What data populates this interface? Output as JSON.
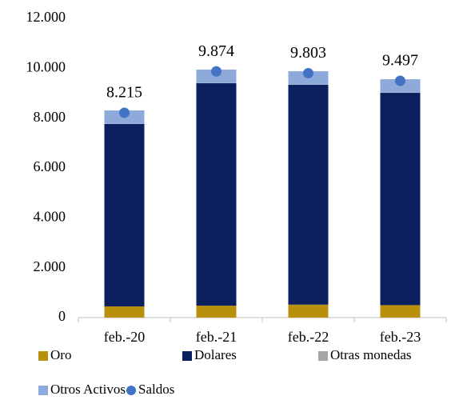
{
  "chart_data": {
    "type": "stacked_bar_dot",
    "categories": [
      "feb.-20",
      "feb.-21",
      "feb.-22",
      "feb.-23"
    ],
    "series": [
      {
        "name": "Oro",
        "color": "#b8900c",
        "values": [
          450,
          480,
          520,
          500
        ]
      },
      {
        "name": "Dolares",
        "color": "#0c1f5e",
        "values": [
          7314,
          8920,
          8816,
          8515
        ]
      },
      {
        "name": "Otras monedas",
        "color": "#a6a6a6",
        "values": [
          10,
          10,
          10,
          10
        ]
      },
      {
        "name": "Otros Activos",
        "color": "#8eaadb",
        "values": [
          535,
          536,
          535,
          535
        ]
      },
      {
        "name": "Saldos",
        "color": "#4472c4",
        "kind": "dot",
        "values": [
          8215,
          9874,
          9803,
          9497
        ],
        "value_labels": [
          "8.215",
          "9.874",
          "9.803",
          "9.497"
        ]
      }
    ],
    "ylim": [
      0,
      12000
    ],
    "yticks": [
      0,
      {
        "value": 2000,
        "label": "2.000"
      },
      {
        "value": 4000,
        "label": "4.000"
      },
      {
        "value": 6000,
        "label": "6.000"
      },
      {
        "value": 8000,
        "label": "8.000"
      },
      {
        "value": 10000,
        "label": "10.000"
      },
      {
        "value": 12000,
        "label": "12.000"
      }
    ],
    "legend": "bottom"
  }
}
